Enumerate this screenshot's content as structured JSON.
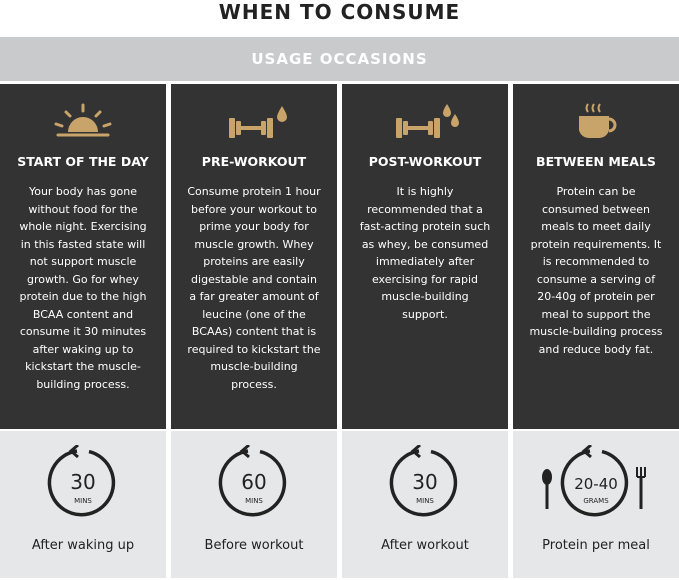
{
  "header": {
    "title": "WHEN TO CONSUME",
    "banner": "USAGE OCCASIONS"
  },
  "columns": [
    {
      "heading": "START OF THE DAY",
      "body": "Your body has gone without food for the whole night. Exercising in this fasted state will not support muscle growth. Go for whey protein due to the high BCAA content and consume it 30 minutes after waking up to kickstart the muscle-building process.",
      "amount": "30",
      "unit": "MINS",
      "caption": "After waking up"
    },
    {
      "heading": "PRE-WORKOUT",
      "body": "Consume protein 1 hour before your workout to prime your body for muscle growth. Whey proteins are easily digestable and contain a far greater amount of leucine (one of the BCAAs) content that is required to kickstart the muscle-building process.",
      "amount": "60",
      "unit": "MINS",
      "caption": "Before workout"
    },
    {
      "heading": "POST-WORKOUT",
      "body": "It is highly recommended that a fast-acting protein such as whey, be consumed immediately after exercising for rapid muscle-building support.",
      "amount": "30",
      "unit": "MINS",
      "caption": "After workout"
    },
    {
      "heading": "BETWEEN MEALS",
      "body": "Protein can be consumed between meals to meet daily protein requirements. It is recommended to consume a serving of 20-40g of protein per meal to support the muscle-building process and reduce body fat.",
      "amount": "20-40",
      "unit": "GRAMS",
      "caption": "Protein per meal"
    }
  ]
}
